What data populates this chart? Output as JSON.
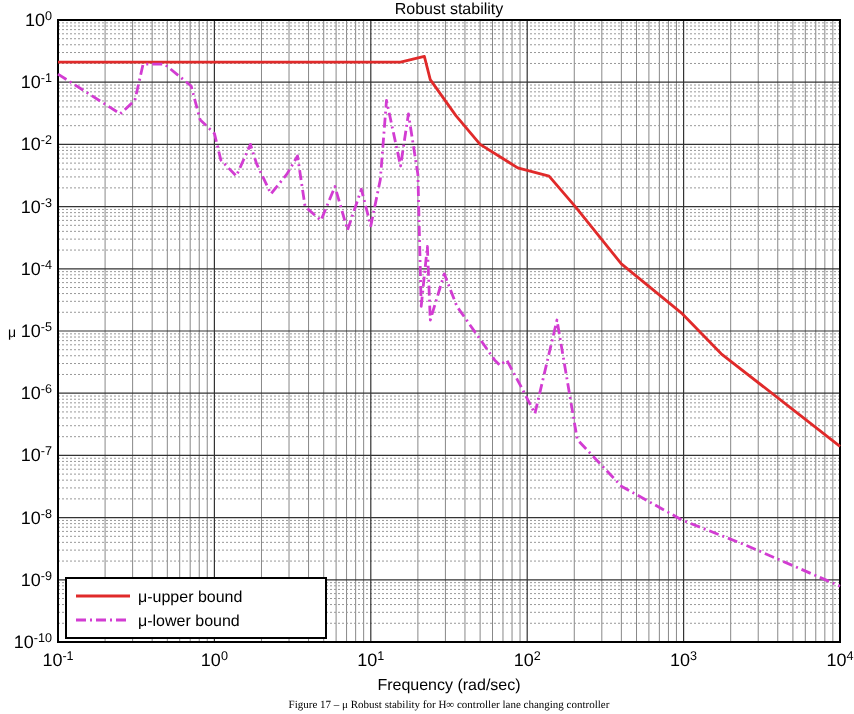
{
  "chart_data": {
    "type": "line",
    "title": "Robust stability",
    "xlabel": "Frequency (rad/sec)",
    "ylabel": "μ",
    "log": "xy",
    "grid": true,
    "legend": "bottom left",
    "xlim": [
      0.1,
      10000
    ],
    "ylim": [
      1e-10,
      1
    ],
    "xticks": [
      {
        "value": 0.1,
        "label": "10$^{-1}$"
      },
      {
        "value": 1,
        "label": "10$^{0}$"
      },
      {
        "value": 10,
        "label": "10$^{1}$"
      },
      {
        "value": 100,
        "label": "10$^{2}$"
      },
      {
        "value": 1000,
        "label": "10$^{3}$"
      },
      {
        "value": 10000,
        "label": "10$^{4}$"
      }
    ],
    "yticks": [
      {
        "value": 1e-10,
        "label": "10$^{-10}$"
      },
      {
        "value": 1e-09,
        "label": "10$^{-9}$"
      },
      {
        "value": 1e-08,
        "label": "10$^{-8}$"
      },
      {
        "value": 1e-07,
        "label": "10$^{-7}$"
      },
      {
        "value": 1e-06,
        "label": "10$^{-6}$"
      },
      {
        "value": 1e-05,
        "label": "10$^{-5}$"
      },
      {
        "value": 0.0001,
        "label": "10$^{-4}$"
      },
      {
        "value": 0.001,
        "label": "10$^{-3}$"
      },
      {
        "value": 0.01,
        "label": "10$^{-2}$"
      },
      {
        "value": 0.1,
        "label": "10$^{-1}$"
      },
      {
        "value": 1,
        "label": "10$^{0}$"
      }
    ],
    "series": [
      {
        "name": "μ-upper bound",
        "color": "#e02a2a",
        "line_style": "solid",
        "x": [
          0.1,
          15.5,
          22,
          24,
          35,
          50,
          87,
          138,
          203,
          400,
          980,
          1740,
          10000
        ],
        "values": [
          0.21,
          0.21,
          0.26,
          0.11,
          0.029,
          0.01,
          0.0042,
          0.0031,
          0.001,
          0.00012,
          1.9e-05,
          4.3e-06,
          1.4e-07
        ]
      },
      {
        "name": "μ-lower bound",
        "color": "#d23cd2",
        "line_style": "dashed",
        "x": [
          0.1,
          0.25,
          0.31,
          0.35,
          0.48,
          0.71,
          0.81,
          1,
          1.1,
          1.38,
          1.7,
          1.86,
          2.3,
          2.9,
          3.4,
          3.8,
          4.8,
          5.9,
          7.1,
          8.7,
          10,
          11.5,
          12.6,
          15.5,
          17.4,
          20,
          21,
          23,
          24,
          29.5,
          35.5,
          62,
          67,
          74,
          91,
          112,
          155,
          209,
          400,
          980,
          2570,
          10000
        ],
        "values": [
          0.135,
          0.031,
          0.051,
          0.195,
          0.195,
          0.087,
          0.025,
          0.015,
          0.0056,
          0.0031,
          0.01,
          0.0049,
          0.0016,
          0.0033,
          0.0065,
          0.001,
          0.0006,
          0.0021,
          0.00042,
          0.0019,
          0.00049,
          0.0027,
          0.051,
          0.0045,
          0.031,
          0.0033,
          2.5e-05,
          0.00023,
          1.5e-05,
          8.3e-05,
          2.5e-05,
          3.4e-06,
          2.8e-06,
          3.4e-06,
          1.3e-06,
          4.7e-07,
          1.5e-05,
          1.8e-07,
          3.2e-08,
          9.1e-09,
          3.5e-09,
          7.9e-10
        ]
      }
    ],
    "annotations": [
      "Figure 17 – μ Robust stability for H∞ controller lane changing controller"
    ]
  }
}
